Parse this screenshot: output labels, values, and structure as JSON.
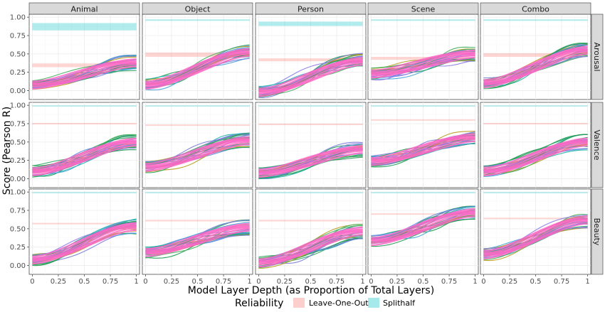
{
  "chart_data": {
    "type": "line",
    "ylabel": "Score (Pearson R)",
    "xlabel": "Model Layer Depth (as Proportion of Total Layers)",
    "x_ticks": [
      "0",
      "0.25",
      "0.5",
      "0.75",
      "1"
    ],
    "y_ticks": [
      "0.00",
      "0.25",
      "0.50",
      "0.75",
      "1.00"
    ],
    "xlim": [
      -0.03,
      1.03
    ],
    "ylim": [
      -0.12,
      1.04
    ],
    "columns": [
      "Animal",
      "Object",
      "Person",
      "Scene",
      "Combo"
    ],
    "rows": [
      "Arousal",
      "Valence",
      "Beauty"
    ],
    "legend": {
      "title": "Reliability",
      "entries": [
        {
          "label": "Leave-One-Out",
          "color": "#f8766d"
        },
        {
          "label": "Splithalf",
          "color": "#00bfc4"
        }
      ]
    },
    "reliability": {
      "splithalf": [
        [
          [
            0.82,
            0.92
          ],
          [
            0.95,
            0.97
          ],
          [
            0.88,
            0.94
          ],
          [
            0.95,
            0.97
          ],
          [
            0.95,
            0.97
          ]
        ],
        [
          [
            0.99,
            0.99
          ],
          [
            0.99,
            0.99
          ],
          [
            0.99,
            0.99
          ],
          [
            0.99,
            0.99
          ],
          [
            0.99,
            0.99
          ]
        ],
        [
          [
            0.99,
            0.99
          ],
          [
            0.99,
            0.99
          ],
          [
            0.99,
            0.99
          ],
          [
            0.99,
            0.99
          ],
          [
            0.99,
            0.99
          ]
        ]
      ],
      "leave_one_out": [
        [
          [
            0.32,
            0.37
          ],
          [
            0.46,
            0.52
          ],
          [
            0.4,
            0.44
          ],
          [
            0.42,
            0.46
          ],
          [
            0.46,
            0.51
          ]
        ],
        [
          [
            0.74,
            0.76
          ],
          [
            0.72,
            0.74
          ],
          [
            0.73,
            0.75
          ],
          [
            0.79,
            0.81
          ],
          [
            0.74,
            0.76
          ]
        ],
        [
          [
            0.56,
            0.58
          ],
          [
            0.6,
            0.62
          ],
          [
            0.6,
            0.62
          ],
          [
            0.69,
            0.71
          ],
          [
            0.63,
            0.65
          ]
        ]
      ]
    },
    "model_line_colors": [
      "#1a9850",
      "#1a9850",
      "#41a0d8",
      "#8c7ae6",
      "#b89a1a",
      "#20b2aa",
      "#5b8ee6",
      "#2ca25f",
      "#7a7ad8",
      "#3fae5a"
    ],
    "model_line_count": 20,
    "mean_line_color": "#ff66c4",
    "trend": [
      [
        [
          0.08,
          0.38
        ],
        [
          0.08,
          0.52
        ],
        [
          -0.02,
          0.4
        ],
        [
          0.23,
          0.5
        ],
        [
          0.1,
          0.55
        ]
      ],
      [
        [
          0.1,
          0.5
        ],
        [
          0.16,
          0.52
        ],
        [
          0.08,
          0.4
        ],
        [
          0.24,
          0.56
        ],
        [
          0.1,
          0.5
        ]
      ],
      [
        [
          0.08,
          0.53
        ],
        [
          0.18,
          0.52
        ],
        [
          0.04,
          0.47
        ],
        [
          0.33,
          0.72
        ],
        [
          0.15,
          0.62
        ]
      ]
    ]
  }
}
